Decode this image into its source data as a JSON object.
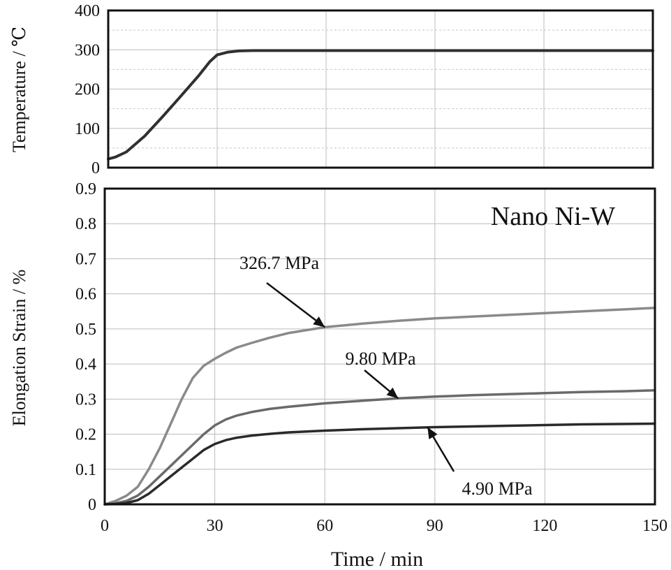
{
  "chart_data": [
    {
      "type": "line",
      "ylabel": "Temperature / ℃",
      "xlim": [
        0,
        150
      ],
      "ylim": [
        0,
        400
      ],
      "x_ticks": [
        "0",
        "30",
        "60",
        "90",
        "120",
        "150"
      ],
      "y_ticks": [
        "0",
        "100",
        "200",
        "300",
        "400"
      ],
      "grid": true,
      "series": [
        {
          "color": "#303030",
          "x": [
            0,
            2,
            5,
            10,
            15,
            20,
            25,
            28,
            30,
            33,
            36,
            40,
            50,
            60,
            90,
            120,
            150
          ],
          "values": [
            22,
            27,
            40,
            80,
            130,
            182,
            235,
            270,
            287,
            294,
            297,
            298,
            298,
            298,
            298,
            298,
            298
          ]
        }
      ]
    },
    {
      "type": "line",
      "ylabel": "Elongation Strain / %",
      "xlabel": "Time / min",
      "xlim": [
        0,
        150
      ],
      "ylim": [
        0,
        0.9
      ],
      "x_ticks": [
        "0",
        "30",
        "60",
        "90",
        "120",
        "150"
      ],
      "y_ticks": [
        "0",
        "0.1",
        "0.2",
        "0.3",
        "0.4",
        "0.5",
        "0.6",
        "0.7",
        "0.8",
        "0.9"
      ],
      "grid": true,
      "annotation": "Nano Ni-W",
      "series": [
        {
          "name": "326.7 MPa",
          "color": "#8a8a8a",
          "x": [
            0,
            3,
            6,
            9,
            12,
            15,
            18,
            21,
            24,
            27,
            30,
            33,
            36,
            40,
            45,
            50,
            60,
            70,
            80,
            90,
            100,
            110,
            120,
            130,
            140,
            150
          ],
          "values": [
            0,
            0.01,
            0.025,
            0.05,
            0.1,
            0.16,
            0.23,
            0.3,
            0.36,
            0.395,
            0.415,
            0.432,
            0.447,
            0.46,
            0.475,
            0.488,
            0.505,
            0.515,
            0.523,
            0.53,
            0.535,
            0.54,
            0.545,
            0.55,
            0.555,
            0.56
          ]
        },
        {
          "name": "9.80 MPa",
          "color": "#6a6a6a",
          "x": [
            0,
            3,
            6,
            9,
            12,
            15,
            18,
            21,
            24,
            27,
            30,
            33,
            36,
            40,
            45,
            50,
            60,
            70,
            80,
            90,
            100,
            110,
            120,
            130,
            140,
            150
          ],
          "values": [
            0,
            0.003,
            0.01,
            0.025,
            0.05,
            0.08,
            0.11,
            0.14,
            0.17,
            0.2,
            0.225,
            0.242,
            0.253,
            0.263,
            0.272,
            0.278,
            0.288,
            0.295,
            0.302,
            0.307,
            0.311,
            0.314,
            0.317,
            0.32,
            0.322,
            0.325
          ]
        },
        {
          "name": "4.90 MPa",
          "color": "#2a2a2a",
          "x": [
            0,
            3,
            6,
            9,
            12,
            15,
            18,
            21,
            24,
            27,
            30,
            33,
            36,
            40,
            45,
            50,
            60,
            70,
            80,
            90,
            100,
            110,
            120,
            130,
            140,
            150
          ],
          "values": [
            0,
            0.001,
            0.004,
            0.012,
            0.03,
            0.055,
            0.08,
            0.105,
            0.13,
            0.155,
            0.172,
            0.183,
            0.19,
            0.196,
            0.201,
            0.205,
            0.21,
            0.214,
            0.217,
            0.22,
            0.222,
            0.224,
            0.226,
            0.228,
            0.229,
            0.23
          ]
        }
      ]
    }
  ]
}
